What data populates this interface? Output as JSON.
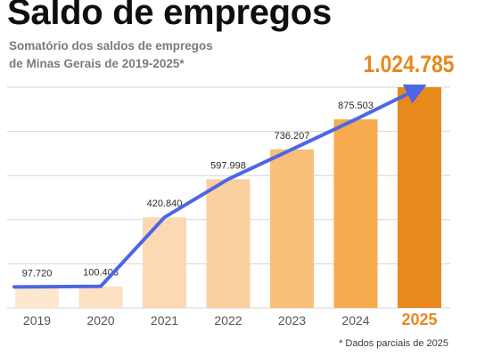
{
  "title": "Saldo de empregos",
  "subtitle_lines": [
    "Somatório dos saldos de empregos",
    "de Minas Gerais de 2019-2025*"
  ],
  "footnote": "* Dados parciais de 2025",
  "colors": {
    "bars": [
      "#fde7cd",
      "#fde0c1",
      "#fcd9b3",
      "#fbd09f",
      "#f8c078",
      "#f7ab4e",
      "#e8891d"
    ],
    "line": "#4c66e6",
    "highlight_label": "#e8891d",
    "grid": "#d6d6d6",
    "value_label": "#2a2a2a",
    "year_label": "#555555"
  },
  "chart_data": {
    "type": "bar",
    "categories": [
      "2019",
      "2020",
      "2021",
      "2022",
      "2023",
      "2024",
      "2025"
    ],
    "values": [
      97720,
      100403,
      420840,
      597998,
      736207,
      875503,
      1024785
    ],
    "value_labels": [
      "97.720",
      "100.403",
      "420.840",
      "597.998",
      "736.207",
      "875.503",
      "1.024.785"
    ],
    "highlight_index": 6,
    "overlay_line": {
      "points": [
        97720,
        100403,
        420840,
        597998,
        736207,
        875503,
        1024785
      ],
      "arrow_end": true
    },
    "title": "Saldo de empregos",
    "xlabel": "",
    "ylabel": "",
    "ylim": [
      0,
      1024785
    ],
    "grid": true,
    "legend": "none"
  }
}
